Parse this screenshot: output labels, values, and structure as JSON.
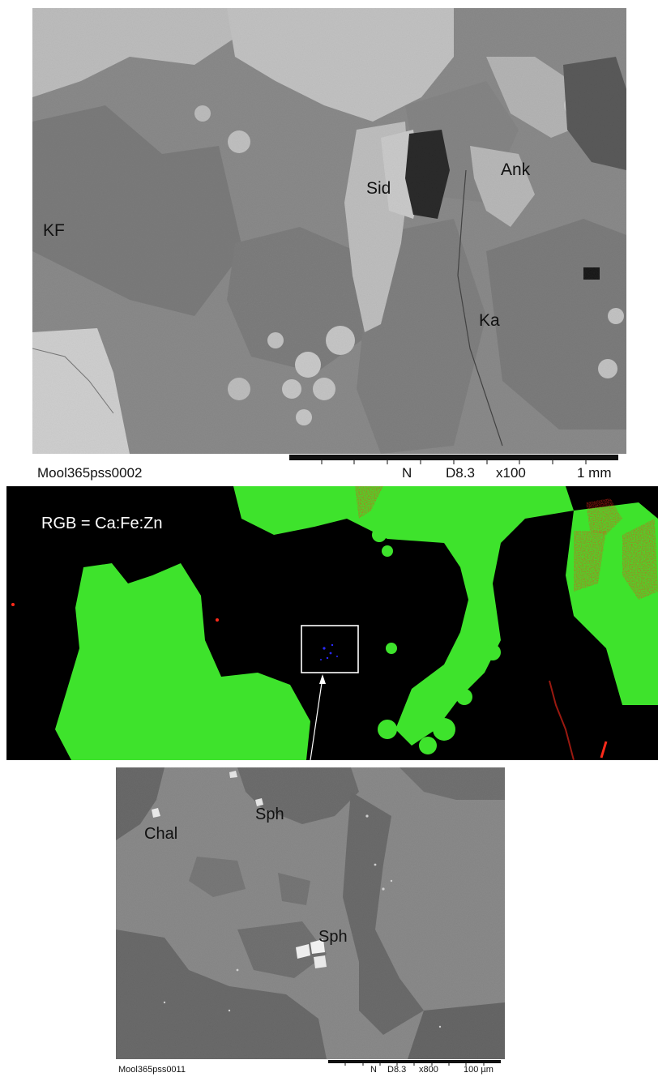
{
  "top_panel": {
    "labels": {
      "kf": "KF",
      "sid": "Sid",
      "ank": "Ank",
      "ka": "Ka"
    },
    "info": {
      "sample_id": "Mool365pss0002",
      "detector": "N",
      "working_distance": "D8.3",
      "magnification": "x100",
      "scale": "1 mm"
    }
  },
  "middle_panel": {
    "title": "RGB = Ca:Fe:Zn",
    "colors": {
      "ca": "#ff2a1a",
      "fe": "#39e62a",
      "zn": "#2a2aff"
    }
  },
  "bottom_panel": {
    "labels": {
      "chal": "Chal",
      "sph_top": "Sph",
      "sph_center": "Sph"
    },
    "info": {
      "sample_id": "Mool365pss0011",
      "detector": "N",
      "working_distance": "D8.3",
      "magnification": "x800",
      "scale": "100 µm"
    }
  }
}
